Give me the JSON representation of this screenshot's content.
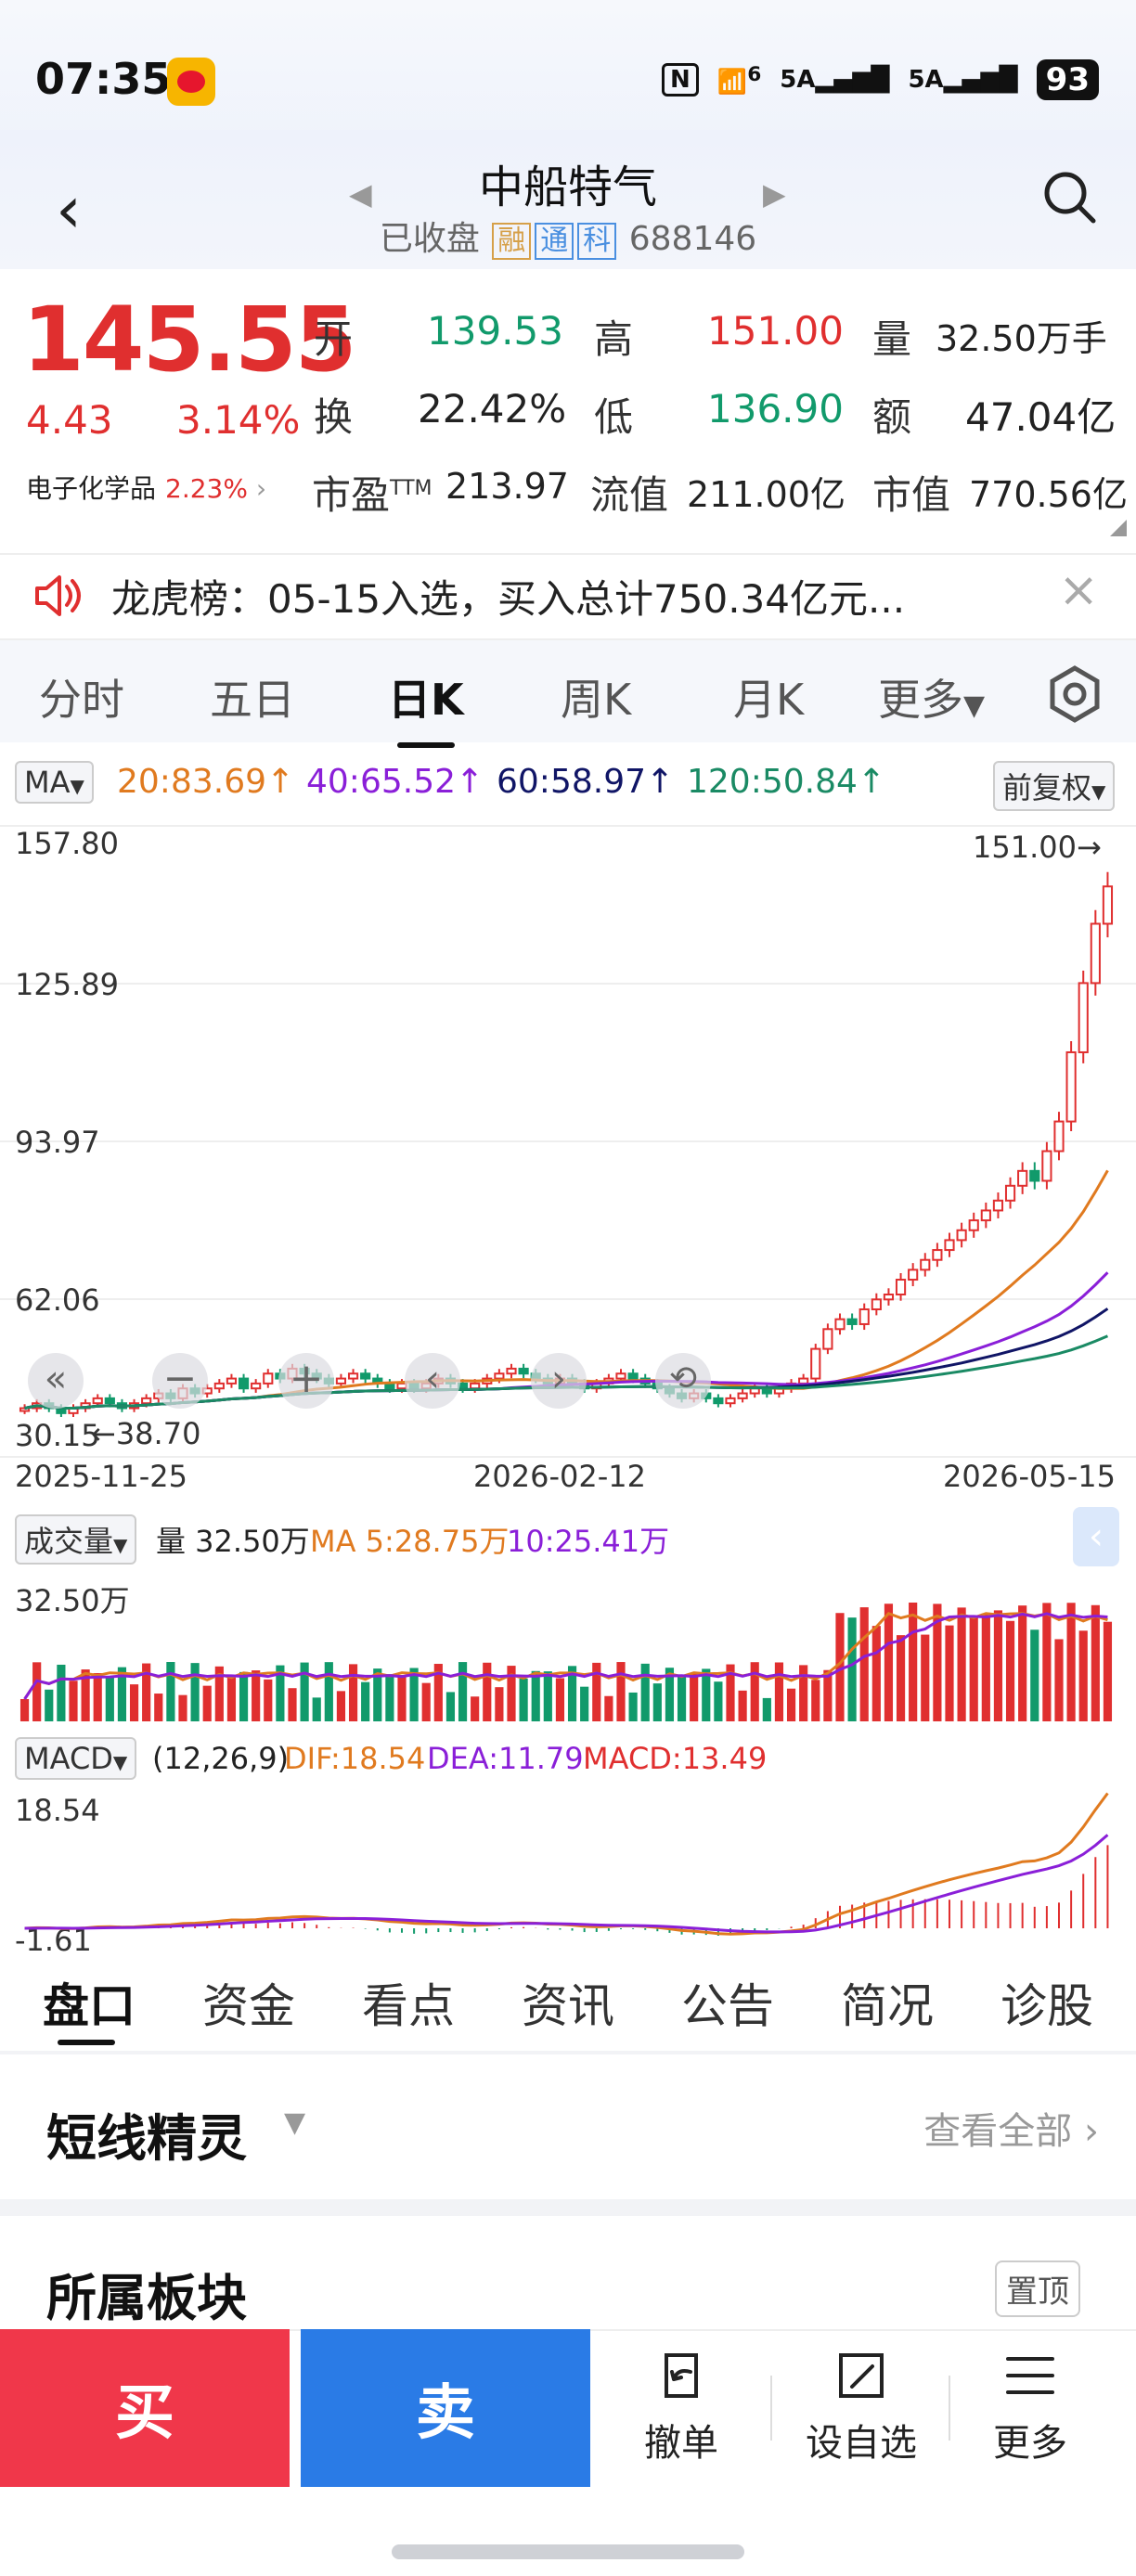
{
  "status_bar": {
    "time": "07:35",
    "signal1": "5A",
    "signal2": "5A",
    "battery": "93",
    "wifi": "6"
  },
  "header": {
    "title": "中船特气",
    "status": "已收盘",
    "tags": [
      "融",
      "通",
      "科"
    ],
    "code": "688146"
  },
  "quote": {
    "price": "145.55",
    "change": "4.43",
    "change_pct": "3.14%",
    "sector_name": "电子化学品",
    "sector_pct": "2.23%",
    "open_label": "开",
    "open": "139.53",
    "high_label": "高",
    "high": "151.00",
    "volume_label": "量",
    "volume": "32.50万手",
    "turnover_label": "换",
    "turnover": "22.42%",
    "low_label": "低",
    "low": "136.90",
    "amount_label": "额",
    "amount": "47.04亿",
    "pe_label": "市盈",
    "pe_sup": "TTM",
    "pe": "213.97",
    "float_cap_label": "流值",
    "float_cap": "211.00亿",
    "market_cap_label": "市值",
    "market_cap": "770.56亿"
  },
  "notice": {
    "text": "龙虎榜：05-15入选，买入总计750.34亿元..."
  },
  "period_tabs": {
    "t1": "分时",
    "t2": "五日",
    "t3": "日K",
    "t4": "周K",
    "t5": "月K",
    "t6": "更多"
  },
  "main_chart": {
    "indicator": "MA",
    "ma20": "20:83.69↑",
    "ma40": "40:65.52↑",
    "ma60": "60:58.97↑",
    "ma120": "120:50.84↑",
    "adjust": "前复权",
    "y_top": "157.80",
    "y2": "125.89",
    "y3": "93.97",
    "y4": "62.06",
    "y_bottom": "30.15",
    "max_label": "151.00→",
    "min_label": "←38.70",
    "x_start": "2025-11-25",
    "x_mid": "2026-02-12",
    "x_end": "2026-05-15",
    "colors": {
      "up": "#e02f2f",
      "down": "#119a6b",
      "ma20": "#e07a1f",
      "ma40": "#8a1fd8",
      "ma60": "#101566",
      "ma120": "#1a8a64"
    }
  },
  "volume_chart": {
    "indicator": "成交量",
    "vol": "量 32.50万",
    "ma5": "MA 5:28.75万",
    "ma10": "10:25.41万",
    "y_top": "32.50万"
  },
  "macd_chart": {
    "indicator": "MACD",
    "params": "(12,26,9)",
    "dif": "DIF:18.54",
    "dea": "DEA:11.79",
    "macd": "MACD:13.49",
    "y_top": "18.54",
    "y_bottom": "-1.61"
  },
  "chart_data": {
    "type": "candlestick",
    "x_range": [
      "2025-11-25",
      "2026-05-15"
    ],
    "ylim": [
      30.15,
      157.8
    ],
    "y_ticks": [
      157.8,
      125.89,
      93.97,
      62.06,
      30.15
    ],
    "high_marker": 151.0,
    "low_marker": 38.7,
    "close_approx": [
      40,
      41,
      40,
      39,
      40,
      41,
      42,
      41,
      40,
      41,
      42,
      43,
      42,
      44,
      43,
      44,
      45,
      46,
      44,
      45,
      47,
      46,
      48,
      47,
      46,
      45,
      46,
      47,
      46,
      45,
      44,
      45,
      44,
      45,
      46,
      45,
      44,
      45,
      46,
      47,
      48,
      47,
      46,
      45,
      46,
      45,
      44,
      45,
      46,
      47,
      46,
      45,
      44,
      43,
      42,
      43,
      42,
      41,
      42,
      43,
      44,
      43,
      44,
      45,
      46,
      52,
      56,
      58,
      57,
      60,
      62,
      63,
      66,
      68,
      70,
      72,
      74,
      76,
      78,
      80,
      82,
      85,
      88,
      86,
      92,
      98,
      112,
      126,
      138,
      145.55
    ],
    "series": [
      {
        "name": "MA20",
        "last": 83.69
      },
      {
        "name": "MA40",
        "last": 65.52
      },
      {
        "name": "MA60",
        "last": 58.97
      },
      {
        "name": "MA120",
        "last": 50.84
      }
    ]
  },
  "bottom_tabs": {
    "b1": "盘口",
    "b2": "资金",
    "b3": "看点",
    "b4": "资讯",
    "b5": "公告",
    "b6": "简况",
    "b7": "诊股"
  },
  "section1": {
    "title": "短线精灵",
    "more": "查看全部"
  },
  "section2": {
    "title": "所属板块",
    "pin": "置顶"
  },
  "footer": {
    "buy": "买",
    "sell": "卖",
    "cancel": "撤单",
    "watch": "设自选",
    "more": "更多"
  }
}
